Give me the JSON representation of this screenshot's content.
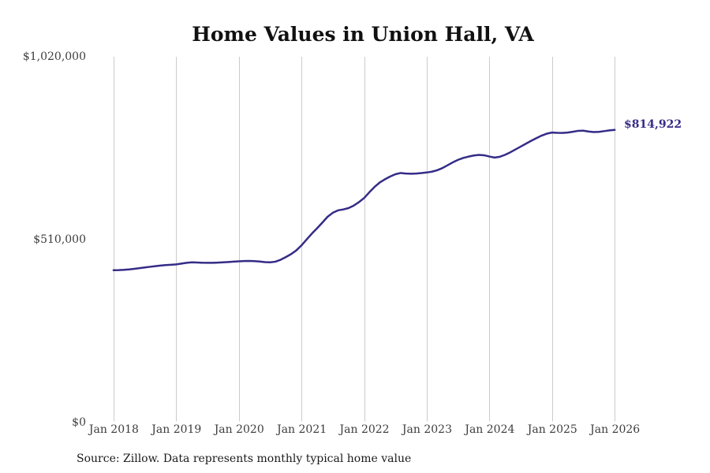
{
  "chart": {
    "title": "Home Values in Union Hall, VA",
    "end_label": "$814,922",
    "source_note": "Source: Zillow. Data represents monthly typical home value",
    "colors": {
      "line": "#342c87",
      "end_label": "#342c87",
      "grid": "#cbcbcb",
      "tick_label": "#3d3d3d",
      "title": "#111111",
      "background": "#ffffff"
    }
  },
  "chart_data": {
    "type": "line",
    "title": "Home Values in Union Hall, VA",
    "xlabel": "",
    "ylabel": "",
    "ylim": [
      0,
      1020000
    ],
    "grid": "vertical-only",
    "legend": "none",
    "y_ticks": [
      {
        "label": "$1,020,000",
        "value": 1020000
      },
      {
        "label": "$510,000",
        "value": 510000
      },
      {
        "label": "$0",
        "value": 0
      }
    ],
    "x_ticks": [
      {
        "label": "Jan 2018",
        "month_index": 0
      },
      {
        "label": "Jan 2019",
        "month_index": 12
      },
      {
        "label": "Jan 2020",
        "month_index": 24
      },
      {
        "label": "Jan 2021",
        "month_index": 36
      },
      {
        "label": "Jan 2022",
        "month_index": 48
      },
      {
        "label": "Jan 2023",
        "month_index": 60
      },
      {
        "label": "Jan 2024",
        "month_index": 72
      },
      {
        "label": "Jan 2025",
        "month_index": 84
      },
      {
        "label": "Jan 2026",
        "month_index": 96
      }
    ],
    "series": [
      {
        "name": "Typical home value",
        "start": "Jan 2018",
        "frequency": "monthly",
        "last_value_label": "$814,922",
        "values": [
          423600,
          424000,
          424800,
          426000,
          427600,
          429400,
          431300,
          433200,
          435000,
          436600,
          437900,
          438900,
          440000,
          442200,
          444300,
          445600,
          445100,
          444500,
          444200,
          444300,
          444900,
          445700,
          446600,
          447500,
          448400,
          449200,
          449500,
          449000,
          447800,
          446300,
          445600,
          447500,
          452800,
          460300,
          468500,
          478800,
          492900,
          509600,
          525900,
          540800,
          556400,
          572600,
          583800,
          590600,
          593100,
          596800,
          603700,
          613500,
          625000,
          641000,
          656000,
          668300,
          677300,
          685000,
          691400,
          694800,
          693200,
          692800,
          693400,
          694600,
          696200,
          698500,
          702500,
          708500,
          716500,
          724500,
          731500,
          736800,
          740500,
          743500,
          745200,
          744200,
          740700,
          737800,
          740000,
          745500,
          752500,
          760500,
          768500,
          776500,
          784500,
          792000,
          799000,
          804500,
          807600,
          806800,
          806600,
          807600,
          809800,
          812400,
          812800,
          810400,
          808900,
          809500,
          811600,
          813600,
          814922
        ]
      }
    ]
  }
}
